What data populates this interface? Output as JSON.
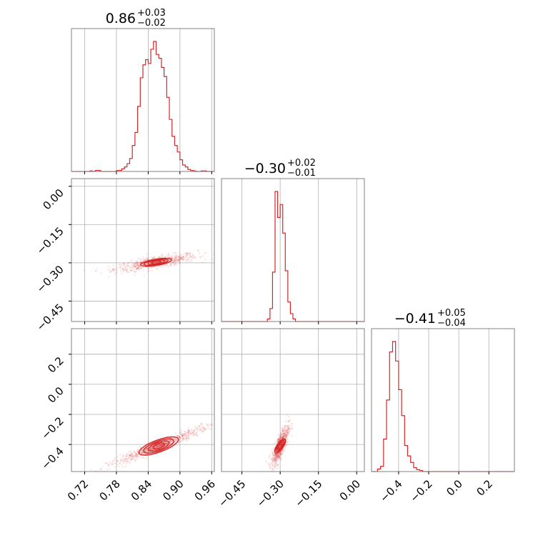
{
  "chart_data": {
    "type": "corner",
    "color": "#d62728",
    "parameters": [
      {
        "index": 0,
        "median": "0.86",
        "plus": "+0.03",
        "minus": "−0.02",
        "range": [
          0.695,
          0.965
        ]
      },
      {
        "index": 1,
        "median": "−0.30",
        "plus": "+0.02",
        "minus": "−0.01",
        "range": [
          -0.53,
          0.03
        ]
      },
      {
        "index": 2,
        "median": "−0.41",
        "plus": "+0.05",
        "minus": "−0.04",
        "range": [
          -0.58,
          0.37
        ]
      }
    ],
    "ticks": {
      "p0": {
        "values": [
          0.72,
          0.78,
          0.84,
          0.9,
          0.96
        ],
        "labels": [
          "0.72",
          "0.78",
          "0.84",
          "0.90",
          "0.96"
        ]
      },
      "p1": {
        "values": [
          -0.45,
          -0.3,
          -0.15,
          0.0
        ],
        "labels": [
          "−0.45",
          "−0.30",
          "−0.15",
          "0.00"
        ]
      },
      "p2": {
        "values": [
          -0.4,
          -0.2,
          0.0,
          0.2
        ],
        "labels": [
          "−0.4",
          "−0.2",
          "0.0",
          "0.2"
        ]
      }
    },
    "grid": true,
    "histograms": [
      {
        "param": 0,
        "bins": [
          [
            0.695,
            0.0
          ],
          [
            0.7,
            0.0
          ],
          [
            0.705,
            0.0
          ],
          [
            0.71,
            0.0
          ],
          [
            0.715,
            0.0
          ],
          [
            0.72,
            0.0
          ],
          [
            0.725,
            0.0
          ],
          [
            0.73,
            0.004
          ],
          [
            0.735,
            0.0
          ],
          [
            0.74,
            0.008
          ],
          [
            0.745,
            0.008
          ],
          [
            0.75,
            0.0
          ],
          [
            0.755,
            0.0
          ],
          [
            0.76,
            0.0
          ],
          [
            0.765,
            0.0
          ],
          [
            0.77,
            0.0
          ],
          [
            0.775,
            0.0
          ],
          [
            0.78,
            0.008
          ],
          [
            0.785,
            0.008
          ],
          [
            0.79,
            0.02
          ],
          [
            0.795,
            0.035
          ],
          [
            0.8,
            0.06
          ],
          [
            0.805,
            0.1
          ],
          [
            0.81,
            0.2
          ],
          [
            0.815,
            0.3
          ],
          [
            0.82,
            0.5
          ],
          [
            0.825,
            0.72
          ],
          [
            0.83,
            0.82
          ],
          [
            0.835,
            0.86
          ],
          [
            0.84,
            0.83
          ],
          [
            0.845,
            0.94
          ],
          [
            0.85,
            1.0
          ],
          [
            0.855,
            0.9
          ],
          [
            0.86,
            0.87
          ],
          [
            0.865,
            0.8
          ],
          [
            0.87,
            0.73
          ],
          [
            0.875,
            0.57
          ],
          [
            0.88,
            0.4
          ],
          [
            0.885,
            0.27
          ],
          [
            0.89,
            0.2
          ],
          [
            0.895,
            0.15
          ],
          [
            0.9,
            0.09
          ],
          [
            0.905,
            0.05
          ],
          [
            0.91,
            0.035
          ],
          [
            0.915,
            0.015
          ],
          [
            0.92,
            0.008
          ],
          [
            0.925,
            0.004
          ],
          [
            0.93,
            0.0
          ],
          [
            0.935,
            0.0
          ],
          [
            0.94,
            0.004
          ],
          [
            0.945,
            0.004
          ],
          [
            0.95,
            0.0
          ],
          [
            0.955,
            0.0
          ],
          [
            0.96,
            0.0
          ]
        ]
      },
      {
        "param": 1,
        "bins": [
          [
            -0.53,
            0.0
          ],
          [
            -0.51,
            0.0
          ],
          [
            -0.49,
            0.0
          ],
          [
            -0.47,
            0.0
          ],
          [
            -0.45,
            0.0
          ],
          [
            -0.43,
            0.0
          ],
          [
            -0.41,
            0.0
          ],
          [
            -0.39,
            0.0
          ],
          [
            -0.37,
            0.0
          ],
          [
            -0.35,
            0.02
          ],
          [
            -0.34,
            0.1
          ],
          [
            -0.33,
            0.38
          ],
          [
            -0.32,
            1.0
          ],
          [
            -0.31,
            0.8
          ],
          [
            -0.3,
            0.9
          ],
          [
            -0.29,
            0.68
          ],
          [
            -0.28,
            0.39
          ],
          [
            -0.27,
            0.15
          ],
          [
            -0.26,
            0.06
          ],
          [
            -0.25,
            0.02
          ],
          [
            -0.24,
            0.0
          ],
          [
            -0.22,
            0.0
          ],
          [
            -0.2,
            0.0
          ],
          [
            -0.18,
            0.0
          ],
          [
            -0.16,
            0.0
          ],
          [
            -0.14,
            0.0
          ],
          [
            -0.12,
            0.0
          ],
          [
            -0.1,
            0.0
          ],
          [
            -0.08,
            0.0
          ],
          [
            -0.06,
            0.0
          ],
          [
            -0.04,
            0.0
          ],
          [
            -0.02,
            0.0
          ],
          [
            0.0,
            0.0
          ],
          [
            0.02,
            0.0
          ]
        ]
      },
      {
        "param": 2,
        "bins": [
          [
            -0.58,
            0.0
          ],
          [
            -0.56,
            0.0
          ],
          [
            -0.54,
            0.02
          ],
          [
            -0.52,
            0.04
          ],
          [
            -0.5,
            0.25
          ],
          [
            -0.48,
            0.55
          ],
          [
            -0.46,
            0.92
          ],
          [
            -0.44,
            1.0
          ],
          [
            -0.42,
            0.85
          ],
          [
            -0.4,
            0.63
          ],
          [
            -0.38,
            0.43
          ],
          [
            -0.36,
            0.2
          ],
          [
            -0.34,
            0.12
          ],
          [
            -0.32,
            0.07
          ],
          [
            -0.3,
            0.03
          ],
          [
            -0.28,
            0.015
          ],
          [
            -0.26,
            0.008
          ],
          [
            -0.24,
            0.0
          ],
          [
            -0.2,
            0.0
          ],
          [
            -0.1,
            0.0
          ],
          [
            0.0,
            0.0
          ],
          [
            0.1,
            0.0
          ],
          [
            0.2,
            0.0
          ],
          [
            0.3,
            0.0
          ],
          [
            0.37,
            0.0
          ]
        ]
      }
    ],
    "pairs": [
      {
        "x": 0,
        "y": 1,
        "center": [
          0.855,
          -0.298
        ],
        "spread": [
          0.028,
          0.012
        ],
        "angle_deg": 9,
        "correlation": 0.75
      },
      {
        "x": 0,
        "y": 2,
        "center": [
          0.86,
          -0.41
        ],
        "spread": [
          0.035,
          0.05
        ],
        "angle_deg": 20,
        "correlation": 0.97
      },
      {
        "x": 1,
        "y": 2,
        "center": [
          -0.3,
          -0.41
        ],
        "spread": [
          0.012,
          0.05
        ],
        "angle_deg": 55,
        "correlation": 0.8
      }
    ]
  }
}
